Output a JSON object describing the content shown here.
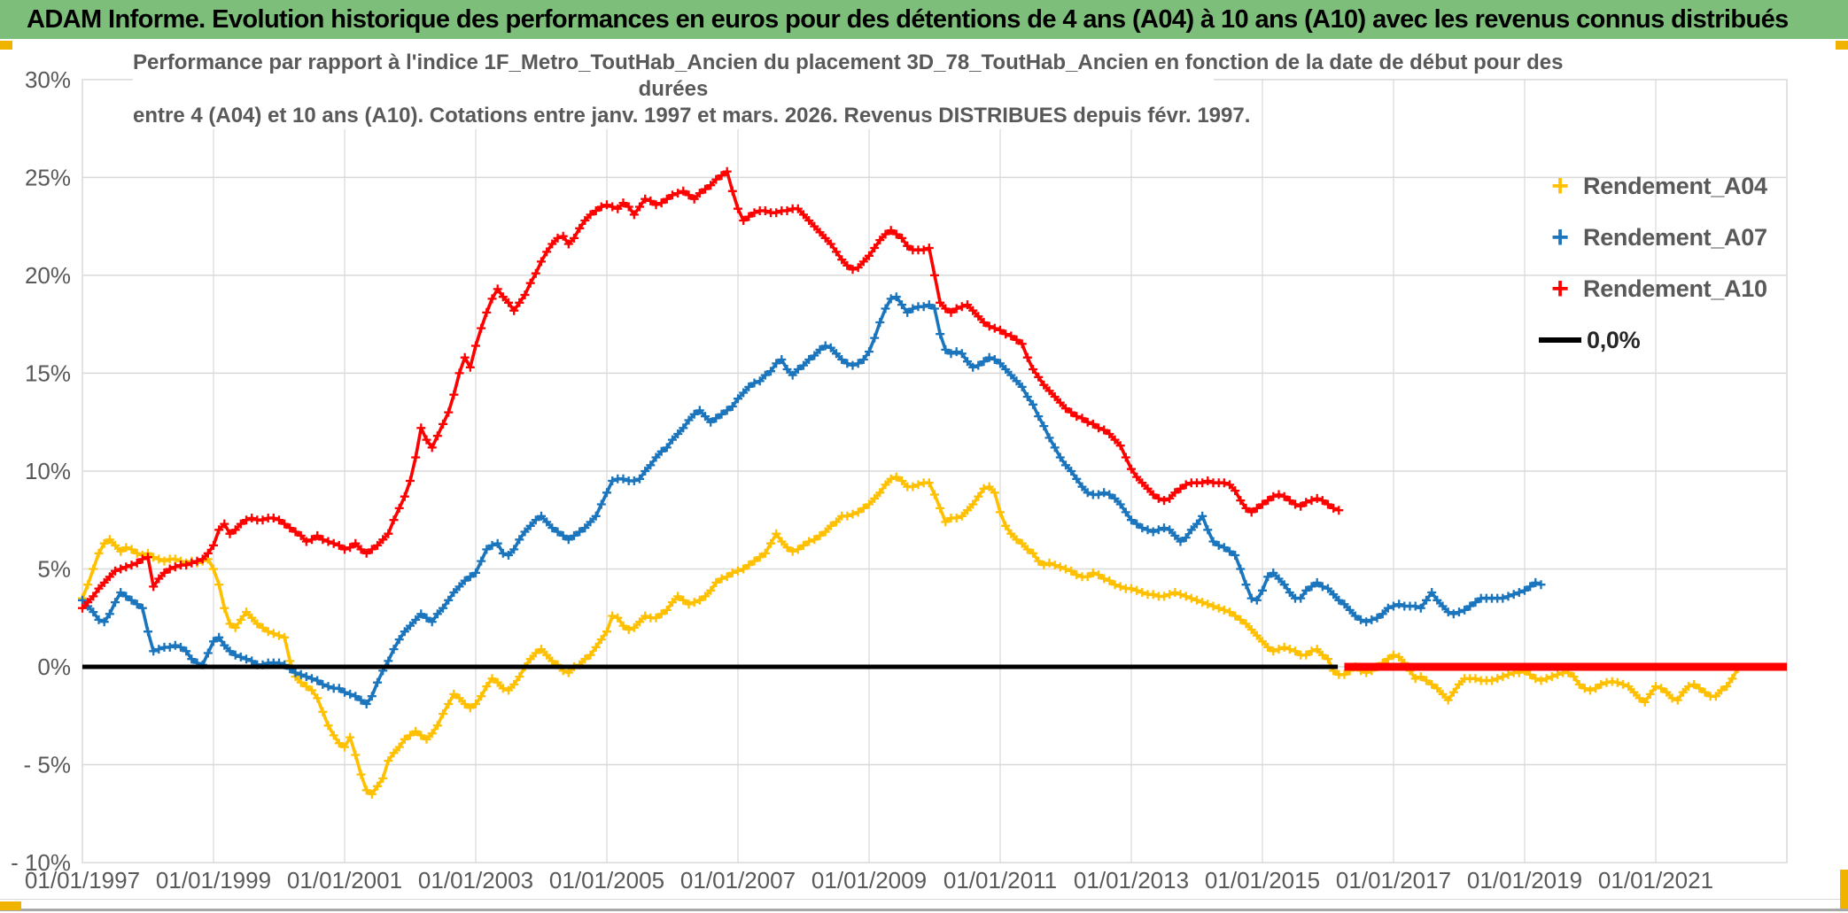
{
  "header": {
    "title": "ADAM Informe. Evolution historique des performances en euros pour des détentions de 4 ans (A04) à 10 ans (A10) avec les revenus connus distribués"
  },
  "chart": {
    "title_lines": [
      "Performance par rapport à l'indice 1F_Metro_ToutHab_Ancien  du placement 3D_78_ToutHab_Ancien en fonction de la date de début pour des",
      "durées",
      "entre 4 (A04) et 10 ans (A10). Cotations entre janv. 1997 et mars. 2026. Revenus DISTRIBUES depuis févr. 1997."
    ],
    "legend": [
      {
        "label": "Rendement_A04",
        "marker": "+",
        "color": "#FFC000"
      },
      {
        "label": "Rendement_A07",
        "marker": "+",
        "color": "#1B75BC"
      },
      {
        "label": "Rendement_A10",
        "marker": "+",
        "color": "#FF0000"
      },
      {
        "label": "0,0%",
        "marker": "line",
        "color": "#000000"
      }
    ]
  },
  "colors": {
    "banner_green": "#7dbe7a",
    "gold_accent": "#f0b400",
    "grid": "#d9d9d9",
    "axis_text": "#595959",
    "series_a04": "#FFC000",
    "series_a07": "#1B75BC",
    "series_a10": "#FF0000",
    "zero_line": "#000000"
  },
  "chart_data": {
    "type": "line",
    "xlim": [
      1997,
      2023
    ],
    "ylim": [
      -10,
      30
    ],
    "grid": true,
    "legend_position": "right-inside",
    "x_axis": {
      "tick_years": [
        1997,
        1999,
        2001,
        2003,
        2005,
        2007,
        2009,
        2011,
        2013,
        2015,
        2017,
        2019,
        2021
      ],
      "tick_labels": [
        "01/01/1997",
        "01/01/1999",
        "01/01/2001",
        "01/01/2003",
        "01/01/2005",
        "01/01/2007",
        "01/01/2009",
        "01/01/2011",
        "01/01/2013",
        "01/01/2015",
        "01/01/2017",
        "01/01/2019",
        "01/01/2021"
      ]
    },
    "y_axis": {
      "tick_values": [
        30,
        25,
        20,
        15,
        10,
        5,
        0,
        -5,
        -10
      ],
      "tick_labels": [
        "30%",
        "25%",
        "20%",
        "15%",
        "10%",
        "5%",
        "0%",
        "- 5%",
        "- 10%"
      ]
    },
    "series": [
      {
        "name": "Rendement_A04",
        "color": "#FFC000",
        "marker": "+",
        "start": 1997,
        "step_years": 0.083333,
        "values": [
          3.5,
          4.2,
          5.0,
          5.8,
          6.3,
          6.5,
          6.2,
          5.9,
          6.1,
          6.0,
          5.8,
          5.7,
          5.8,
          5.6,
          5.5,
          5.4,
          5.5,
          5.5,
          5.4,
          5.3,
          5.4,
          5.3,
          5.4,
          5.5,
          5.0,
          4.2,
          3.0,
          2.2,
          2.0,
          2.4,
          2.8,
          2.5,
          2.2,
          2.0,
          1.8,
          1.7,
          1.6,
          1.5,
          0.3,
          -0.5,
          -0.8,
          -1.0,
          -1.2,
          -1.6,
          -2.3,
          -3.0,
          -3.5,
          -3.9,
          -4.1,
          -3.6,
          -4.5,
          -5.5,
          -6.3,
          -6.5,
          -6.1,
          -5.7,
          -4.8,
          -4.4,
          -4.1,
          -3.7,
          -3.5,
          -3.3,
          -3.5,
          -3.7,
          -3.4,
          -3.0,
          -2.4,
          -1.9,
          -1.4,
          -1.6,
          -1.9,
          -2.1,
          -1.9,
          -1.5,
          -1.0,
          -0.6,
          -0.8,
          -1.1,
          -1.2,
          -0.9,
          -0.5,
          0.0,
          0.4,
          0.7,
          0.9,
          0.6,
          0.3,
          0.1,
          -0.2,
          -0.3,
          0.0,
          0.1,
          0.4,
          0.6,
          1.0,
          1.4,
          1.8,
          2.6,
          2.5,
          2.1,
          1.9,
          2.0,
          2.3,
          2.6,
          2.5,
          2.5,
          2.7,
          2.9,
          3.3,
          3.6,
          3.4,
          3.2,
          3.3,
          3.4,
          3.6,
          3.9,
          4.3,
          4.5,
          4.6,
          4.8,
          4.9,
          5.0,
          5.2,
          5.4,
          5.6,
          5.8,
          6.3,
          6.8,
          6.4,
          6.1,
          5.9,
          6.0,
          6.2,
          6.4,
          6.5,
          6.7,
          6.9,
          7.2,
          7.4,
          7.7,
          7.7,
          7.8,
          7.9,
          8.1,
          8.3,
          8.6,
          8.9,
          9.3,
          9.6,
          9.7,
          9.5,
          9.2,
          9.2,
          9.3,
          9.4,
          9.4,
          8.8,
          8.1,
          7.4,
          7.6,
          7.6,
          7.7,
          8.0,
          8.3,
          8.7,
          9.1,
          9.2,
          8.9,
          7.9,
          7.2,
          6.8,
          6.5,
          6.3,
          6.0,
          5.8,
          5.4,
          5.2,
          5.3,
          5.2,
          5.1,
          5.0,
          4.9,
          4.7,
          4.6,
          4.6,
          4.8,
          4.7,
          4.5,
          4.4,
          4.2,
          4.1,
          4.0,
          4.0,
          3.9,
          3.8,
          3.7,
          3.7,
          3.6,
          3.6,
          3.7,
          3.8,
          3.7,
          3.6,
          3.5,
          3.4,
          3.3,
          3.2,
          3.1,
          3.0,
          2.9,
          2.8,
          2.6,
          2.4,
          2.2,
          1.9,
          1.6,
          1.3,
          1.0,
          0.8,
          0.9,
          1.0,
          0.9,
          0.8,
          0.6,
          0.6,
          0.8,
          0.9,
          0.6,
          0.4,
          -0.2,
          -0.4,
          -0.4,
          -0.2,
          0.0,
          -0.2,
          -0.3,
          -0.2,
          0.0,
          0.2,
          0.4,
          0.6,
          0.5,
          0.2,
          -0.2,
          -0.6,
          -0.5,
          -0.7,
          -0.9,
          -1.1,
          -1.4,
          -1.7,
          -1.3,
          -0.9,
          -0.6,
          -0.6,
          -0.6,
          -0.7,
          -0.7,
          -0.7,
          -0.6,
          -0.5,
          -0.4,
          -0.3,
          -0.3,
          -0.2,
          -0.4,
          -0.6,
          -0.7,
          -0.6,
          -0.5,
          -0.4,
          -0.3,
          -0.3,
          -0.5,
          -0.9,
          -1.1,
          -1.2,
          -1.1,
          -0.9,
          -0.8,
          -0.75,
          -0.8,
          -0.9,
          -1.0,
          -1.3,
          -1.6,
          -1.8,
          -1.4,
          -1.0,
          -1.1,
          -1.3,
          -1.6,
          -1.7,
          -1.3,
          -1.0,
          -0.9,
          -1.1,
          -1.3,
          -1.5,
          -1.5,
          -1.2,
          -1.0,
          -0.6,
          -0.1
        ]
      },
      {
        "name": "Rendement_A07",
        "color": "#1B75BC",
        "marker": "+",
        "start": 1997,
        "step_years": 0.083333,
        "values": [
          3.4,
          3.1,
          2.8,
          2.4,
          2.3,
          2.7,
          3.3,
          3.8,
          3.6,
          3.4,
          3.2,
          3.0,
          1.8,
          0.8,
          0.9,
          1.0,
          1.0,
          1.1,
          1.0,
          0.8,
          0.4,
          0.2,
          0.1,
          0.7,
          1.3,
          1.5,
          1.1,
          0.8,
          0.6,
          0.5,
          0.4,
          0.3,
          0.1,
          0.1,
          0.2,
          0.2,
          0.2,
          0.1,
          -0.1,
          -0.3,
          -0.4,
          -0.5,
          -0.6,
          -0.7,
          -0.9,
          -1.0,
          -1.1,
          -1.1,
          -1.3,
          -1.4,
          -1.5,
          -1.7,
          -1.9,
          -1.5,
          -0.8,
          -0.2,
          0.3,
          0.9,
          1.4,
          1.8,
          2.1,
          2.4,
          2.7,
          2.5,
          2.3,
          2.7,
          3.0,
          3.4,
          3.8,
          4.1,
          4.4,
          4.6,
          4.8,
          5.4,
          6.0,
          6.2,
          6.3,
          5.8,
          5.7,
          6.0,
          6.5,
          6.9,
          7.2,
          7.5,
          7.7,
          7.4,
          7.1,
          6.9,
          6.7,
          6.5,
          6.7,
          6.9,
          7.1,
          7.4,
          7.7,
          8.3,
          8.9,
          9.5,
          9.6,
          9.6,
          9.5,
          9.5,
          9.6,
          10.0,
          10.3,
          10.7,
          11.0,
          11.2,
          11.6,
          11.9,
          12.2,
          12.6,
          12.9,
          13.1,
          12.8,
          12.5,
          12.7,
          12.9,
          13.1,
          13.3,
          13.7,
          14.0,
          14.3,
          14.5,
          14.6,
          14.9,
          15.1,
          15.5,
          15.7,
          15.2,
          14.9,
          15.2,
          15.4,
          15.7,
          15.9,
          16.2,
          16.4,
          16.3,
          16.0,
          15.7,
          15.5,
          15.4,
          15.5,
          15.7,
          16.1,
          16.8,
          17.6,
          18.3,
          18.8,
          18.9,
          18.5,
          18.1,
          18.3,
          18.4,
          18.4,
          18.5,
          18.3,
          17.0,
          16.2,
          16.0,
          16.1,
          16.0,
          15.6,
          15.3,
          15.4,
          15.6,
          15.8,
          15.7,
          15.5,
          15.2,
          14.9,
          14.6,
          14.3,
          13.8,
          13.4,
          12.8,
          12.3,
          11.7,
          11.2,
          10.7,
          10.3,
          10.0,
          9.6,
          9.2,
          8.9,
          8.8,
          8.8,
          8.9,
          8.8,
          8.6,
          8.3,
          7.9,
          7.5,
          7.3,
          7.1,
          7.0,
          6.9,
          7.0,
          7.1,
          7.0,
          6.7,
          6.4,
          6.6,
          7.0,
          7.3,
          7.7,
          7.0,
          6.4,
          6.2,
          6.1,
          5.9,
          5.7,
          5.0,
          4.2,
          3.5,
          3.4,
          3.9,
          4.6,
          4.8,
          4.5,
          4.2,
          3.8,
          3.5,
          3.5,
          3.9,
          4.1,
          4.3,
          4.1,
          4.0,
          3.7,
          3.4,
          3.2,
          2.9,
          2.6,
          2.4,
          2.3,
          2.4,
          2.5,
          2.7,
          3.0,
          3.1,
          3.2,
          3.1,
          3.1,
          3.1,
          3.0,
          3.4,
          3.8,
          3.4,
          3.1,
          2.8,
          2.7,
          2.8,
          2.9,
          3.1,
          3.3,
          3.5,
          3.5,
          3.5,
          3.5,
          3.5,
          3.6,
          3.7,
          3.8,
          3.9,
          4.1,
          4.3,
          4.2
        ]
      },
      {
        "name": "Rendement_A10",
        "color": "#FF0000",
        "marker": "+",
        "start": 1997,
        "step_years": 0.083333,
        "values": [
          3.0,
          3.3,
          3.6,
          4.0,
          4.3,
          4.6,
          4.9,
          5.0,
          5.1,
          5.2,
          5.3,
          5.5,
          5.6,
          4.1,
          4.5,
          4.8,
          5.0,
          5.1,
          5.2,
          5.2,
          5.3,
          5.4,
          5.5,
          5.8,
          6.2,
          7.0,
          7.3,
          6.8,
          7.0,
          7.3,
          7.5,
          7.6,
          7.5,
          7.5,
          7.6,
          7.6,
          7.5,
          7.3,
          7.1,
          6.9,
          6.7,
          6.4,
          6.5,
          6.7,
          6.5,
          6.4,
          6.3,
          6.2,
          6.0,
          6.1,
          6.3,
          6.0,
          5.8,
          6.0,
          6.2,
          6.5,
          6.8,
          7.5,
          8.1,
          8.7,
          9.5,
          10.7,
          12.2,
          11.6,
          11.2,
          11.8,
          12.4,
          13.0,
          13.9,
          15.0,
          15.8,
          15.3,
          16.4,
          17.3,
          18.1,
          18.8,
          19.3,
          18.9,
          18.6,
          18.2,
          18.6,
          19.0,
          19.6,
          20.1,
          20.7,
          21.2,
          21.6,
          21.9,
          22.0,
          21.6,
          21.9,
          22.4,
          22.8,
          23.1,
          23.3,
          23.5,
          23.6,
          23.5,
          23.4,
          23.7,
          23.5,
          23.1,
          23.5,
          23.9,
          23.8,
          23.6,
          23.7,
          23.9,
          24.1,
          24.2,
          24.3,
          24.1,
          23.9,
          24.2,
          24.4,
          24.6,
          24.9,
          25.1,
          25.3,
          24.3,
          23.4,
          22.8,
          23.0,
          23.2,
          23.3,
          23.3,
          23.2,
          23.2,
          23.3,
          23.3,
          23.4,
          23.4,
          23.1,
          22.8,
          22.5,
          22.2,
          21.9,
          21.6,
          21.2,
          20.8,
          20.5,
          20.3,
          20.4,
          20.7,
          21.0,
          21.4,
          21.8,
          22.1,
          22.3,
          22.1,
          21.9,
          21.5,
          21.3,
          21.3,
          21.3,
          21.4,
          20.0,
          18.6,
          18.3,
          18.1,
          18.3,
          18.4,
          18.5,
          18.2,
          17.9,
          17.6,
          17.4,
          17.3,
          17.2,
          17.0,
          16.9,
          16.7,
          16.5,
          15.8,
          15.2,
          14.8,
          14.4,
          14.1,
          13.8,
          13.5,
          13.2,
          13.0,
          12.8,
          12.7,
          12.5,
          12.4,
          12.2,
          12.1,
          11.9,
          11.6,
          11.3,
          10.7,
          10.1,
          9.7,
          9.4,
          9.1,
          8.8,
          8.6,
          8.5,
          8.6,
          8.9,
          9.1,
          9.3,
          9.4,
          9.4,
          9.4,
          9.5,
          9.4,
          9.4,
          9.4,
          9.3,
          9.0,
          8.5,
          8.1,
          7.9,
          8.1,
          8.3,
          8.5,
          8.7,
          8.8,
          8.7,
          8.5,
          8.3,
          8.2,
          8.4,
          8.5,
          8.6,
          8.5,
          8.3,
          8.1,
          8.0
        ],
        "zero_tail": {
          "from": 2016.25,
          "to": 2023.0,
          "value": 0,
          "width": 9
        }
      },
      {
        "name": "0,0%",
        "type": "zero_line",
        "color": "#000000",
        "value": 0,
        "from": 1997.0,
        "to": 2016.15,
        "width": 5
      }
    ]
  }
}
